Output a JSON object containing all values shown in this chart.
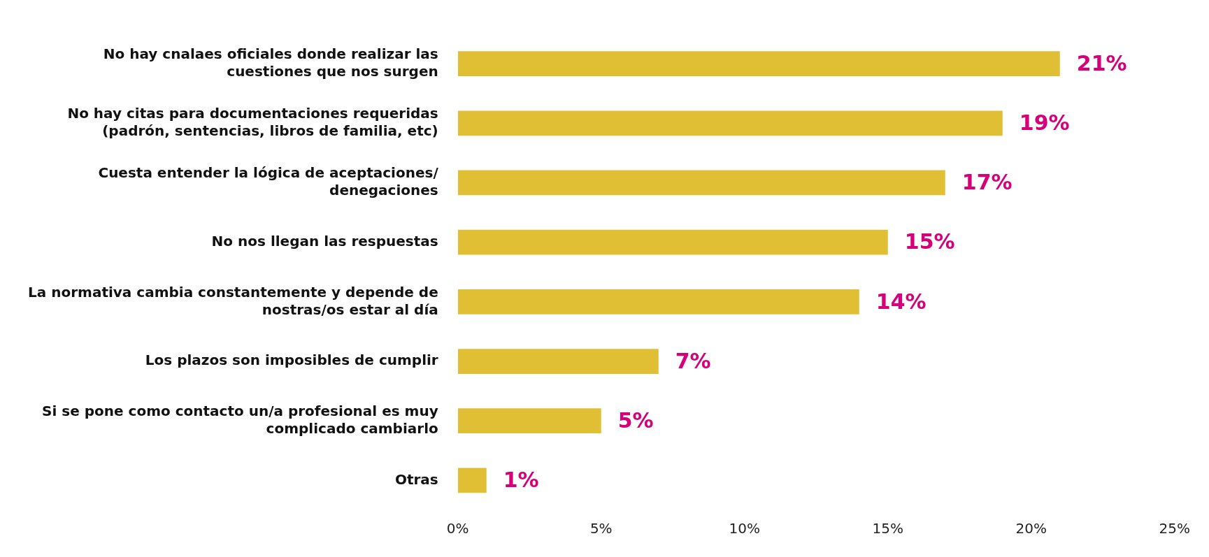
{
  "chart_data": {
    "type": "bar",
    "orientation": "horizontal",
    "categories": [
      "No hay cnalaes oficiales donde realizar las cuestiones que nos surgen",
      "No hay citas para documentaciones requeridas (padrón, sentencias, libros de familia, etc)",
      "Cuesta entender la lógica de aceptaciones/ denegaciones",
      "No nos llegan las respuestas",
      "La normativa cambia constantemente y depende de nostras/os estar al día",
      "Los plazos son imposibles de cumplir",
      "Si se pone como contacto un/a profesional es muy complicado cambiarlo",
      "Otras"
    ],
    "values": [
      21,
      19,
      17,
      15,
      14,
      7,
      5,
      1
    ],
    "color": "#e0bf34",
    "value_labels": [
      "21%",
      "19%",
      "17%",
      "15%",
      "14%",
      "7%",
      "5%",
      "1%"
    ],
    "xlim": [
      0,
      25
    ],
    "xticks": [
      {
        "value": 0,
        "label": "0%"
      },
      {
        "value": 5,
        "label": "5%"
      },
      {
        "value": 10,
        "label": "10%"
      },
      {
        "value": 15,
        "label": "15%"
      },
      {
        "value": 20,
        "label": "20%"
      },
      {
        "value": 25,
        "label": "25%"
      }
    ],
    "grid": false,
    "legend": false
  }
}
